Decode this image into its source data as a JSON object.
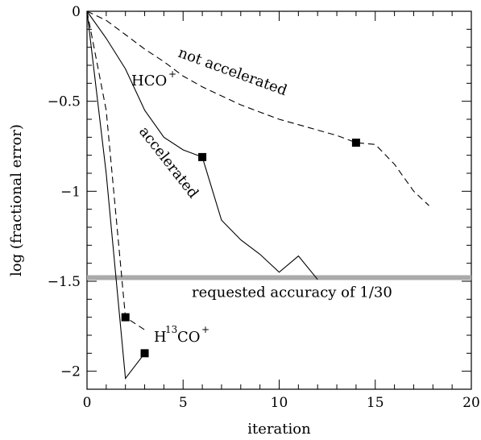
{
  "chart_data": {
    "type": "line",
    "xlabel": "iteration",
    "ylabel": "log (fractional error)",
    "xlim": [
      0,
      20
    ],
    "ylim": [
      -2.1,
      0
    ],
    "x_ticks": [
      "0",
      "5",
      "10",
      "15",
      "20"
    ],
    "y_ticks": [
      "0",
      "−0.5",
      "−1",
      "−1.5",
      "−2"
    ],
    "grid": false,
    "threshold": {
      "y": -1.48,
      "label": "requested accuracy of 1/30",
      "color": "#aaaaaa"
    },
    "series": [
      {
        "key": "hco-not-accelerated",
        "style": "dashed",
        "points": [
          [
            0,
            0
          ],
          [
            1,
            -0.05
          ],
          [
            2,
            -0.13
          ],
          [
            3,
            -0.21
          ],
          [
            4,
            -0.28
          ],
          [
            5,
            -0.36
          ],
          [
            6,
            -0.42
          ],
          [
            7,
            -0.47
          ],
          [
            8,
            -0.52
          ],
          [
            9,
            -0.56
          ],
          [
            10,
            -0.6
          ],
          [
            11,
            -0.63
          ],
          [
            12,
            -0.66
          ],
          [
            13,
            -0.69
          ],
          [
            14,
            -0.73
          ],
          [
            15,
            -0.74
          ],
          [
            16,
            -0.85
          ],
          [
            17,
            -1.0
          ],
          [
            17.8,
            -1.08
          ]
        ],
        "markers": [
          [
            14,
            -0.73
          ]
        ]
      },
      {
        "key": "hco-accelerated",
        "style": "solid",
        "points": [
          [
            0,
            0
          ],
          [
            1,
            -0.15
          ],
          [
            2,
            -0.32
          ],
          [
            3,
            -0.55
          ],
          [
            4,
            -0.7
          ],
          [
            5,
            -0.77
          ],
          [
            6,
            -0.81
          ],
          [
            7,
            -1.16
          ],
          [
            8,
            -1.27
          ],
          [
            9,
            -1.35
          ],
          [
            10,
            -1.45
          ],
          [
            11,
            -1.36
          ],
          [
            12,
            -1.49
          ]
        ],
        "markers": [
          [
            6,
            -0.81
          ]
        ]
      },
      {
        "key": "h13co-not-accelerated",
        "style": "dashed",
        "points": [
          [
            0,
            0
          ],
          [
            1,
            -0.55
          ],
          [
            2,
            -1.7
          ],
          [
            3,
            -1.77
          ]
        ],
        "markers": [
          [
            2,
            -1.7
          ]
        ]
      },
      {
        "key": "h13co-accelerated",
        "style": "solid",
        "points": [
          [
            0,
            0
          ],
          [
            1,
            -0.9
          ],
          [
            2,
            -2.04
          ],
          [
            3,
            -1.9
          ]
        ],
        "markers": [
          [
            3,
            -1.9
          ]
        ]
      }
    ],
    "annotations": {
      "not_accelerated": "not accelerated",
      "accelerated": "accelerated",
      "hco_main": "HCO",
      "hco_sup": "+",
      "h13co_h": "H",
      "h13co_sup13": "13",
      "h13co_co": "CO",
      "h13co_sup": "+"
    }
  }
}
